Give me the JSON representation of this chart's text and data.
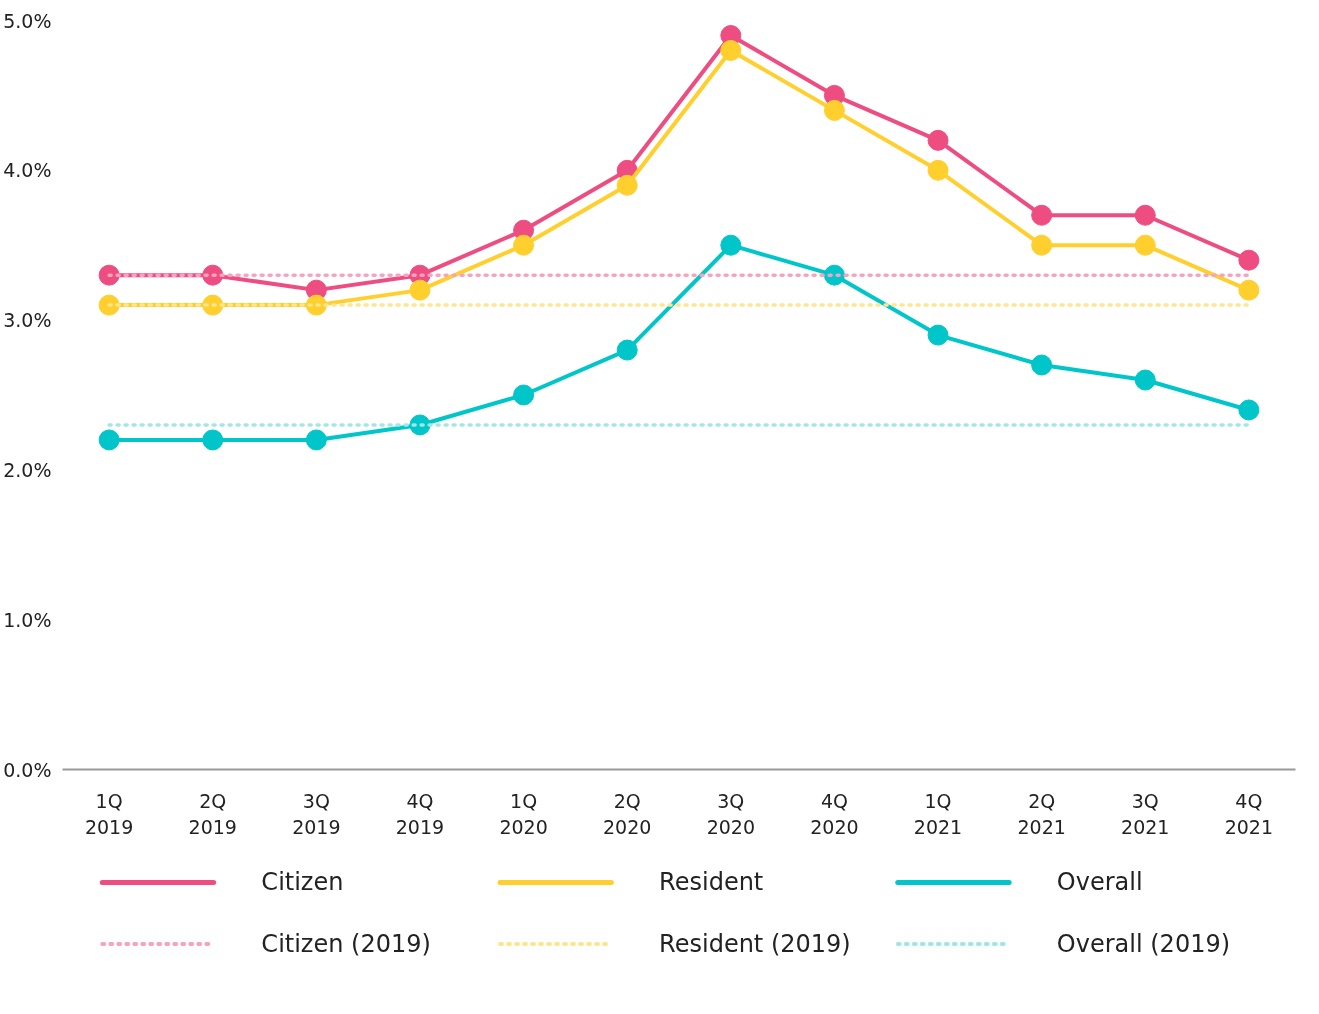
{
  "chart_data": {
    "type": "line",
    "categories": [
      "1Q\n2019",
      "2Q\n2019",
      "3Q\n2019",
      "4Q\n2019",
      "1Q\n2020",
      "2Q\n2020",
      "3Q\n2020",
      "4Q\n2020",
      "1Q\n2021",
      "2Q\n2021",
      "3Q\n2021",
      "4Q\n2021"
    ],
    "series": [
      {
        "name": "Citizen",
        "color": "#ee4d81",
        "values": [
          3.3,
          3.3,
          3.2,
          3.3,
          3.6,
          4.0,
          4.9,
          4.5,
          4.2,
          3.7,
          3.7,
          3.4
        ]
      },
      {
        "name": "Resident",
        "color": "#ffcf2e",
        "values": [
          3.1,
          3.1,
          3.1,
          3.2,
          3.5,
          3.9,
          4.8,
          4.4,
          4.0,
          3.5,
          3.5,
          3.2
        ]
      },
      {
        "name": "Overall",
        "color": "#00c5c9",
        "values": [
          2.2,
          2.2,
          2.2,
          2.3,
          2.5,
          2.8,
          3.5,
          3.3,
          2.9,
          2.7,
          2.6,
          2.4
        ]
      },
      {
        "name": "Citizen (2019)",
        "color": "#f7a3c0",
        "line_style": "dotted",
        "marker": "none",
        "values": [
          3.3,
          3.3,
          3.3,
          3.3,
          3.3,
          3.3,
          3.3,
          3.3,
          3.3,
          3.3,
          3.3,
          3.3
        ]
      },
      {
        "name": "Resident (2019)",
        "color": "#fde68c",
        "line_style": "dotted",
        "marker": "none",
        "values": [
          3.1,
          3.1,
          3.1,
          3.1,
          3.1,
          3.1,
          3.1,
          3.1,
          3.1,
          3.1,
          3.1,
          3.1
        ]
      },
      {
        "name": "Overall (2019)",
        "color": "#a3e6e6",
        "line_style": "dotted",
        "marker": "none",
        "values": [
          2.3,
          2.3,
          2.3,
          2.3,
          2.3,
          2.3,
          2.3,
          2.3,
          2.3,
          2.3,
          2.3,
          2.3
        ]
      }
    ],
    "ylim": [
      0,
      5.0
    ],
    "yticks": [
      {
        "value": 0,
        "label": "0.0%"
      },
      {
        "value": 1,
        "label": "1.0%"
      },
      {
        "value": 2,
        "label": "2.0%"
      },
      {
        "value": 3,
        "label": "3.0%"
      },
      {
        "value": 4,
        "label": "4.0%"
      },
      {
        "value": 5,
        "label": "5.0%"
      }
    ],
    "marker": "circle",
    "line_style": "solid",
    "grid": false,
    "legend": "bottom"
  }
}
